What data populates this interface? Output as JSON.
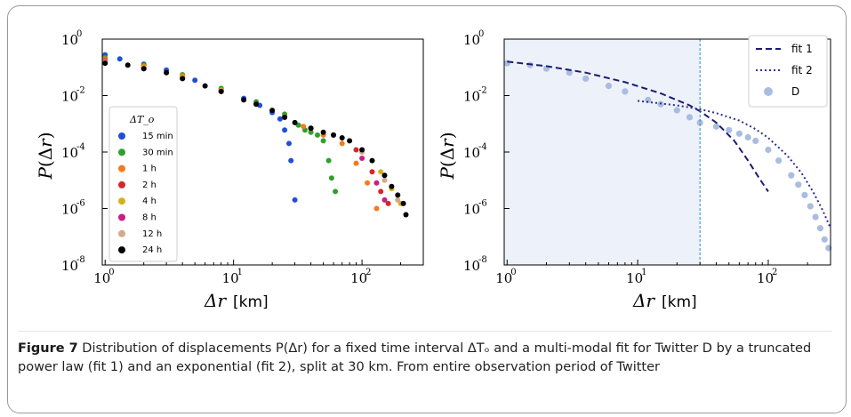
{
  "caption": {
    "label": "Figure 7",
    "text": " Distribution of displacements P(Δr) for a fixed time interval ΔTₒ and a multi-modal fit for Twitter D by a truncated power law (fit 1) and an exponential (fit 2), split at 30 km. From entire observation period of Twitter"
  },
  "chart_data": [
    {
      "type": "scatter",
      "xlabel": "Δr  [km]",
      "ylabel": "P(Δr)",
      "xscale": "log",
      "yscale": "log",
      "xlim": [
        0.95,
        300
      ],
      "ylim": [
        1e-08,
        1
      ],
      "x_ticks": [
        "10^0",
        "10^1",
        "10^2"
      ],
      "y_ticks": [
        "10^0",
        "10^-2",
        "10^-4",
        "10^-6",
        "10^-8"
      ],
      "legend_title": "ΔT_o",
      "legend_position": "center-left",
      "series": [
        {
          "name": "15 min",
          "color": "#1f4fd6",
          "x": [
            1,
            1.3,
            2,
            3,
            5,
            8,
            12,
            16,
            20,
            23,
            25,
            27,
            28,
            30
          ],
          "y": [
            0.28,
            0.2,
            0.13,
            0.08,
            0.035,
            0.016,
            0.008,
            0.0045,
            0.0025,
            0.0015,
            0.0006,
            0.0002,
            5e-05,
            2e-06
          ]
        },
        {
          "name": "30 min",
          "color": "#2ea02c",
          "x": [
            1,
            2,
            4,
            8,
            15,
            25,
            32,
            36,
            40,
            45,
            50,
            55,
            58,
            62
          ],
          "y": [
            0.22,
            0.12,
            0.055,
            0.018,
            0.006,
            0.0022,
            0.0009,
            0.0006,
            0.0005,
            0.0004,
            0.00025,
            5e-05,
            1.2e-05,
            4e-06
          ]
        },
        {
          "name": "1 h",
          "color": "#f27b1c",
          "x": [
            1,
            2,
            4,
            8,
            15,
            25,
            35,
            50,
            70,
            90,
            110,
            130
          ],
          "y": [
            0.2,
            0.11,
            0.05,
            0.016,
            0.005,
            0.0018,
            0.0008,
            0.0004,
            0.0002,
            4e-05,
            8e-06,
            1e-06
          ]
        },
        {
          "name": "2 h",
          "color": "#d62728",
          "x": [
            1,
            2,
            4,
            8,
            15,
            25,
            40,
            60,
            90,
            120,
            140,
            160
          ],
          "y": [
            0.18,
            0.1,
            0.045,
            0.015,
            0.005,
            0.0017,
            0.0007,
            0.0004,
            0.00012,
            2e-05,
            4e-06,
            1.5e-06
          ]
        },
        {
          "name": "4 h",
          "color": "#d6b21a",
          "x": [
            1,
            2,
            4,
            8,
            15,
            25,
            40,
            60,
            100,
            140,
            170,
            200
          ],
          "y": [
            0.17,
            0.1,
            0.045,
            0.015,
            0.005,
            0.0017,
            0.0007,
            0.0004,
            0.0001,
            2e-05,
            5e-06,
            1.5e-06
          ]
        },
        {
          "name": "8 h",
          "color": "#c81f82",
          "x": [
            1,
            2,
            4,
            8,
            15,
            25,
            40,
            60,
            100,
            130,
            150
          ],
          "y": [
            0.16,
            0.09,
            0.04,
            0.014,
            0.005,
            0.0017,
            0.0007,
            0.0004,
            6e-05,
            8e-06,
            2e-06
          ]
        },
        {
          "name": "12 h",
          "color": "#d4a98c",
          "x": [
            1,
            2,
            4,
            8,
            15,
            25,
            40,
            60,
            100,
            150,
            190
          ],
          "y": [
            0.15,
            0.09,
            0.04,
            0.014,
            0.005,
            0.0017,
            0.0007,
            0.0004,
            0.0001,
            1e-05,
            2e-06
          ]
        },
        {
          "name": "24 h",
          "color": "#000000",
          "x": [
            1,
            1.5,
            2,
            3,
            4,
            6,
            8,
            12,
            15,
            20,
            25,
            30,
            40,
            50,
            60,
            70,
            80,
            100,
            120,
            150,
            170,
            190,
            210,
            220
          ],
          "y": [
            0.14,
            0.12,
            0.09,
            0.065,
            0.04,
            0.022,
            0.014,
            0.007,
            0.005,
            0.003,
            0.0017,
            0.0011,
            0.0007,
            0.0005,
            0.0004,
            0.00032,
            0.00025,
            0.00012,
            5e-05,
            1.5e-05,
            6e-06,
            3e-06,
            1.5e-06,
            6e-07
          ]
        }
      ]
    },
    {
      "type": "scatter",
      "xlabel": "Δr  [km]",
      "ylabel": "P(Δr)",
      "xscale": "log",
      "yscale": "log",
      "xlim": [
        0.95,
        300
      ],
      "ylim": [
        1e-08,
        1
      ],
      "x_ticks": [
        "10^0",
        "10^1",
        "10^2"
      ],
      "y_ticks": [
        "10^0",
        "10^-2",
        "10^-4",
        "10^-6",
        "10^-8"
      ],
      "split_x": 30,
      "legend_position": "upper-right",
      "series": [
        {
          "name": "fit 1",
          "style": "dashed",
          "color": "#1c1c6e",
          "x": [
            1,
            2,
            4,
            8,
            15,
            25,
            30,
            40,
            55,
            70,
            85,
            100
          ],
          "y": [
            0.16,
            0.11,
            0.065,
            0.03,
            0.012,
            0.0045,
            0.0028,
            0.0011,
            0.00025,
            5e-05,
            1.2e-05,
            4e-06
          ]
        },
        {
          "name": "fit 2",
          "style": "dotted",
          "color": "#2e2e90",
          "x": [
            10,
            20,
            30,
            40,
            60,
            80,
            100,
            140,
            180,
            220,
            260,
            300
          ],
          "y": [
            0.0065,
            0.0045,
            0.0033,
            0.0024,
            0.0013,
            0.00065,
            0.00032,
            7.5e-05,
            1.8e-05,
            4e-06,
            9e-07,
            2e-07
          ]
        },
        {
          "name": "D",
          "style": "points",
          "color": "#a9bde0",
          "x": [
            1,
            1.5,
            2,
            3,
            4,
            6,
            8,
            12,
            15,
            20,
            25,
            30,
            40,
            50,
            60,
            70,
            80,
            100,
            120,
            150,
            170,
            190,
            210,
            230,
            250,
            270,
            290
          ],
          "y": [
            0.14,
            0.12,
            0.09,
            0.065,
            0.04,
            0.022,
            0.014,
            0.007,
            0.005,
            0.003,
            0.0017,
            0.0011,
            0.0008,
            0.0006,
            0.00045,
            0.00033,
            0.00025,
            0.00012,
            5e-05,
            1.5e-05,
            7e-06,
            3e-06,
            1.2e-06,
            5e-07,
            2e-07,
            8e-08,
            4e-08
          ]
        }
      ]
    }
  ]
}
